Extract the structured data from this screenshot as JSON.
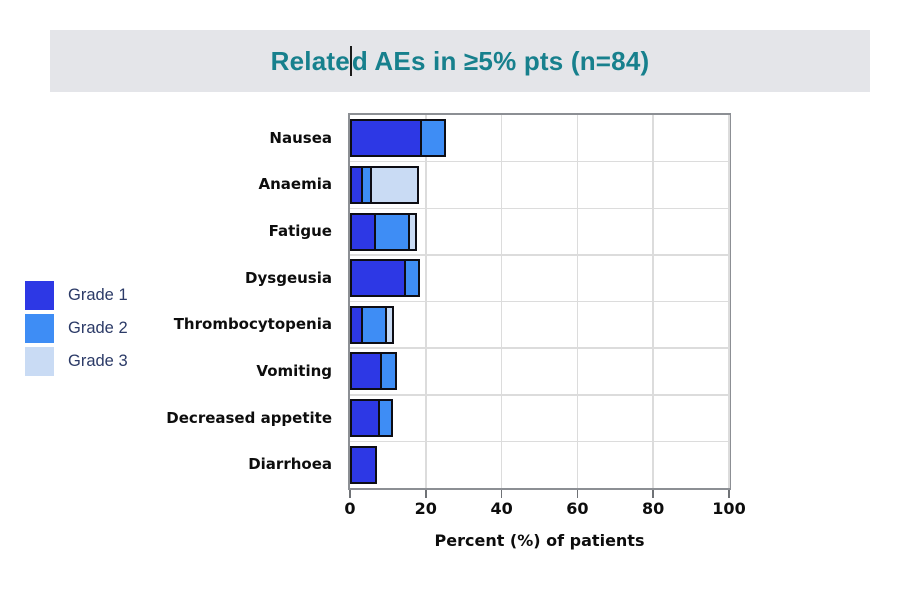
{
  "page": {
    "background": "#ffffff"
  },
  "title_banner": {
    "background": "#e4e5e9",
    "title": "Related AEs in ≥5% pts (n=84)",
    "title_before_caret": "Relate",
    "title_after_caret": "d AEs in ≥5% pts (n=84)",
    "title_color": "#17808d"
  },
  "legend": {
    "items": [
      {
        "label": "Grade 1",
        "color": "#2d38e5"
      },
      {
        "label": "Grade 2",
        "color": "#3e8df5"
      },
      {
        "label": "Grade 3",
        "color": "#c9dbf4"
      }
    ],
    "text_color": "#2b3a67"
  },
  "chart_data": {
    "type": "bar",
    "orientation": "horizontal",
    "stacked": true,
    "title": "Related AEs in ≥5% pts (n=84)",
    "xlabel": "Percent (%) of patients",
    "xlim": [
      0,
      100
    ],
    "xticks": [
      0,
      20,
      40,
      60,
      80,
      100
    ],
    "grid": true,
    "legend_position": "left",
    "categories": [
      "Nausea",
      "Anaemia",
      "Fatigue",
      "Dysgeusia",
      "Thrombocytopenia",
      "Vomiting",
      "Decreased appetite",
      "Diarrhoea"
    ],
    "series": [
      {
        "name": "Grade 1",
        "color": "#2d38e5",
        "values": [
          19,
          3.5,
          7,
          15,
          3.5,
          8.5,
          8,
          7
        ]
      },
      {
        "name": "Grade 2",
        "color": "#3e8df5",
        "values": [
          7,
          3,
          9.5,
          4,
          7,
          4.5,
          4,
          0
        ]
      },
      {
        "name": "Grade 3",
        "color": "#c9dbf4",
        "values": [
          0,
          13,
          2.5,
          0,
          2.5,
          0,
          0,
          0
        ]
      }
    ],
    "totals": [
      26,
      19.5,
      19,
      19,
      13,
      13,
      12,
      7
    ],
    "bar_border_color": "#0d0d14",
    "axis_color": "#8c8f94",
    "gridline_color": "#dcdcdc",
    "tick_label_color": "#0d0d0d",
    "category_label_color": "#0d0d0d"
  }
}
